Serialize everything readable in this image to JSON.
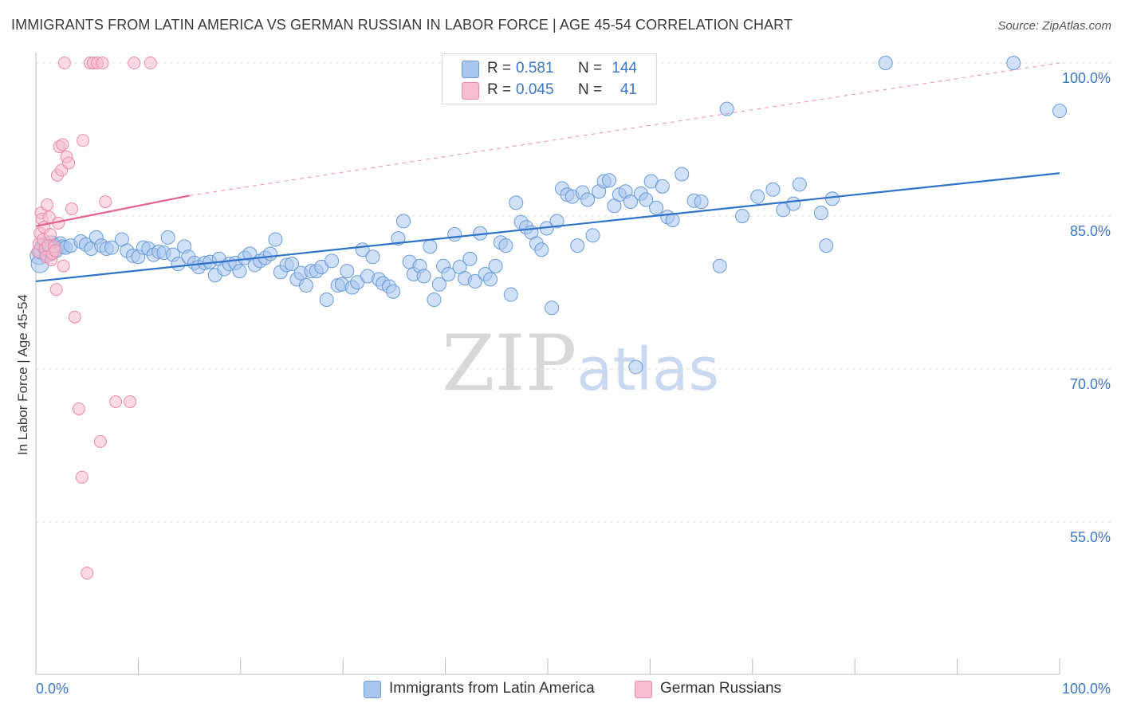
{
  "title": "IMMIGRANTS FROM LATIN AMERICA VS GERMAN RUSSIAN IN LABOR FORCE | AGE 45-54 CORRELATION CHART",
  "source": "Source: ZipAtlas.com",
  "watermark": {
    "zip": "ZIP",
    "atlas": "atlas"
  },
  "legend_top": {
    "series": [
      {
        "r_label": "R =",
        "r_value": "0.581",
        "n_label": "N =",
        "n_value": "144"
      },
      {
        "r_label": "R =",
        "r_value": "0.045",
        "n_label": "N =",
        "n_value": "41"
      }
    ]
  },
  "legend_bottom": [
    "Immigrants from Latin America",
    "German Russians"
  ],
  "colors": {
    "blue_fill": "#a9c7ee",
    "blue_stroke": "#6a9bd8",
    "blue_line": "#2f72c8",
    "pink_fill": "#f7bcd0",
    "pink_stroke": "#e98aab",
    "pink_line": "#e2618e",
    "axis_text": "#3d76c4",
    "grid": "#dedede"
  },
  "chart_data": {
    "type": "scatter",
    "title": "IMMIGRANTS FROM LATIN AMERICA VS GERMAN RUSSIAN IN LABOR FORCE | AGE 45-54 CORRELATION CHART",
    "xlabel": "",
    "ylabel": "In Labor Force | Age 45-54",
    "xlim": [
      0,
      100
    ],
    "ylim": [
      40,
      101
    ],
    "x_tick_labels": [
      "0.0%",
      "100.0%"
    ],
    "y_ticks": [
      55,
      70,
      85,
      100
    ],
    "y_tick_labels": [
      "55.0%",
      "70.0%",
      "85.0%",
      "100.0%"
    ],
    "grid": true,
    "legend_position": "top-center and bottom",
    "series": [
      {
        "name": "Immigrants from Latin America",
        "color": "#a9c7ee",
        "trend": {
          "x": [
            0,
            100
          ],
          "y": [
            78.6,
            89.2
          ]
        },
        "points": [
          [
            0.3,
            81.1
          ],
          [
            0.4,
            80.3
          ],
          [
            0.6,
            81.6
          ],
          [
            0.9,
            82.1
          ],
          [
            1.2,
            81.4
          ],
          [
            1.4,
            81.8
          ],
          [
            1.5,
            82.2
          ],
          [
            1.8,
            81.9
          ],
          [
            2.0,
            81.6
          ],
          [
            2.4,
            82.3
          ],
          [
            2.6,
            82.0
          ],
          [
            2.9,
            81.9
          ],
          [
            3.4,
            82.1
          ],
          [
            4.4,
            82.5
          ],
          [
            4.9,
            82.2
          ],
          [
            5.4,
            81.8
          ],
          [
            5.9,
            82.9
          ],
          [
            6.4,
            82.1
          ],
          [
            6.9,
            81.8
          ],
          [
            7.4,
            81.9
          ],
          [
            8.4,
            82.7
          ],
          [
            8.9,
            81.6
          ],
          [
            9.5,
            81.1
          ],
          [
            10.0,
            81.0
          ],
          [
            10.5,
            81.9
          ],
          [
            11.0,
            81.8
          ],
          [
            11.5,
            81.2
          ],
          [
            12.0,
            81.5
          ],
          [
            12.5,
            81.4
          ],
          [
            12.9,
            82.9
          ],
          [
            13.4,
            81.2
          ],
          [
            13.9,
            80.3
          ],
          [
            14.5,
            82.0
          ],
          [
            14.9,
            81.0
          ],
          [
            15.5,
            80.4
          ],
          [
            15.9,
            80.0
          ],
          [
            16.5,
            80.4
          ],
          [
            17.0,
            80.5
          ],
          [
            17.5,
            79.2
          ],
          [
            17.9,
            80.8
          ],
          [
            18.4,
            79.8
          ],
          [
            18.9,
            80.3
          ],
          [
            19.5,
            80.4
          ],
          [
            19.9,
            79.6
          ],
          [
            20.4,
            80.9
          ],
          [
            20.9,
            81.3
          ],
          [
            21.4,
            80.2
          ],
          [
            21.9,
            80.6
          ],
          [
            22.4,
            80.9
          ],
          [
            22.9,
            81.3
          ],
          [
            23.4,
            82.7
          ],
          [
            23.9,
            79.5
          ],
          [
            24.5,
            80.2
          ],
          [
            25.0,
            80.3
          ],
          [
            25.5,
            78.8
          ],
          [
            25.9,
            79.4
          ],
          [
            26.4,
            78.2
          ],
          [
            26.9,
            79.6
          ],
          [
            27.4,
            79.6
          ],
          [
            27.9,
            80.0
          ],
          [
            28.4,
            76.8
          ],
          [
            28.9,
            80.6
          ],
          [
            29.5,
            78.2
          ],
          [
            29.9,
            78.3
          ],
          [
            30.4,
            79.6
          ],
          [
            30.9,
            78.0
          ],
          [
            31.4,
            78.5
          ],
          [
            31.9,
            81.7
          ],
          [
            32.4,
            79.1
          ],
          [
            32.9,
            81.0
          ],
          [
            33.5,
            78.8
          ],
          [
            33.9,
            78.4
          ],
          [
            34.5,
            78.1
          ],
          [
            34.9,
            77.6
          ],
          [
            35.4,
            82.8
          ],
          [
            35.9,
            84.5
          ],
          [
            36.5,
            80.5
          ],
          [
            36.9,
            79.3
          ],
          [
            37.5,
            80.1
          ],
          [
            37.9,
            79.1
          ],
          [
            38.5,
            82.0
          ],
          [
            38.9,
            76.8
          ],
          [
            39.4,
            78.3
          ],
          [
            39.8,
            80.1
          ],
          [
            40.3,
            79.3
          ],
          [
            40.9,
            83.2
          ],
          [
            41.4,
            80.0
          ],
          [
            41.9,
            78.9
          ],
          [
            42.4,
            80.8
          ],
          [
            42.9,
            78.6
          ],
          [
            43.4,
            83.3
          ],
          [
            43.9,
            79.3
          ],
          [
            44.4,
            78.8
          ],
          [
            44.9,
            80.1
          ],
          [
            45.4,
            82.4
          ],
          [
            45.9,
            82.1
          ],
          [
            46.4,
            77.3
          ],
          [
            46.9,
            86.3
          ],
          [
            47.4,
            84.4
          ],
          [
            47.9,
            83.9
          ],
          [
            48.4,
            83.4
          ],
          [
            48.9,
            82.3
          ],
          [
            49.4,
            81.7
          ],
          [
            49.9,
            83.8
          ],
          [
            50.4,
            76.0
          ],
          [
            50.9,
            84.5
          ],
          [
            51.4,
            87.7
          ],
          [
            51.9,
            87.1
          ],
          [
            52.4,
            86.9
          ],
          [
            52.9,
            82.1
          ],
          [
            53.4,
            87.3
          ],
          [
            53.9,
            86.6
          ],
          [
            54.4,
            83.1
          ],
          [
            55.0,
            87.4
          ],
          [
            55.5,
            88.4
          ],
          [
            56.0,
            88.5
          ],
          [
            56.5,
            86.0
          ],
          [
            57.0,
            87.1
          ],
          [
            57.6,
            87.4
          ],
          [
            58.1,
            86.4
          ],
          [
            58.6,
            70.2
          ],
          [
            59.1,
            87.2
          ],
          [
            59.6,
            86.6
          ],
          [
            60.1,
            88.4
          ],
          [
            60.6,
            85.8
          ],
          [
            61.2,
            87.9
          ],
          [
            61.7,
            84.9
          ],
          [
            62.2,
            84.6
          ],
          [
            63.1,
            89.1
          ],
          [
            64.3,
            86.5
          ],
          [
            65.0,
            86.4
          ],
          [
            66.8,
            80.1
          ],
          [
            67.5,
            95.5
          ],
          [
            69.0,
            85.0
          ],
          [
            70.5,
            86.9
          ],
          [
            72.0,
            87.6
          ],
          [
            73.0,
            85.6
          ],
          [
            74.0,
            86.2
          ],
          [
            74.6,
            88.1
          ],
          [
            76.7,
            85.3
          ],
          [
            77.2,
            82.1
          ],
          [
            77.8,
            86.7
          ],
          [
            83.0,
            100.0
          ],
          [
            95.5,
            100.0
          ],
          [
            100.0,
            95.3
          ]
        ]
      },
      {
        "name": "German Russians",
        "color": "#f7bcd0",
        "trend": {
          "x": [
            0,
            15
          ],
          "y": [
            84.0,
            87.0
          ]
        },
        "points": [
          [
            0.2,
            81.5
          ],
          [
            0.3,
            82.3
          ],
          [
            0.4,
            83.3
          ],
          [
            0.5,
            85.3
          ],
          [
            0.6,
            84.7
          ],
          [
            0.7,
            82.7
          ],
          [
            0.8,
            83.9
          ],
          [
            0.9,
            81.8
          ],
          [
            1.0,
            81.0
          ],
          [
            1.1,
            86.1
          ],
          [
            1.2,
            82.1
          ],
          [
            1.3,
            84.9
          ],
          [
            1.4,
            83.2
          ],
          [
            1.5,
            80.7
          ],
          [
            1.6,
            81.3
          ],
          [
            1.8,
            82.0
          ],
          [
            1.9,
            81.6
          ],
          [
            2.0,
            77.8
          ],
          [
            2.1,
            89.0
          ],
          [
            2.2,
            84.3
          ],
          [
            2.3,
            91.8
          ],
          [
            2.5,
            89.5
          ],
          [
            2.6,
            92.0
          ],
          [
            2.7,
            80.1
          ],
          [
            2.8,
            100.0
          ],
          [
            3.0,
            90.8
          ],
          [
            3.2,
            90.2
          ],
          [
            3.5,
            85.7
          ],
          [
            3.8,
            75.1
          ],
          [
            4.2,
            66.1
          ],
          [
            4.5,
            59.4
          ],
          [
            4.6,
            92.4
          ],
          [
            5.0,
            50.0
          ],
          [
            5.3,
            100.0
          ],
          [
            5.6,
            100.0
          ],
          [
            6.0,
            100.0
          ],
          [
            6.3,
            62.9
          ],
          [
            6.5,
            100.0
          ],
          [
            6.8,
            86.4
          ],
          [
            7.8,
            66.8
          ],
          [
            9.2,
            66.8
          ],
          [
            9.6,
            100.0
          ],
          [
            11.2,
            100.0
          ]
        ]
      }
    ]
  }
}
